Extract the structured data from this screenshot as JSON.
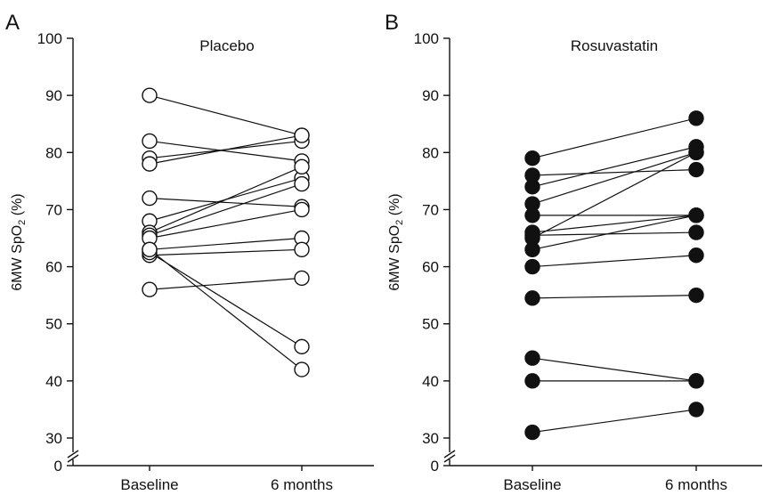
{
  "chart_data": [
    {
      "type": "scatter",
      "panel_letter": "A",
      "title": "Placebo",
      "ylabel_main": "6MW SpO",
      "ylabel_sub": "2",
      "ylabel_unit": " (%)",
      "categories": [
        "Baseline",
        "6 months"
      ],
      "y_ticks": [
        30,
        40,
        50,
        60,
        70,
        80,
        90,
        100
      ],
      "y_zero_label": "0",
      "ylim": [
        30,
        100
      ],
      "axis_break": true,
      "marker": "open",
      "pairs": [
        [
          90,
          83
        ],
        [
          82,
          78.5
        ],
        [
          79,
          82
        ],
        [
          78,
          83
        ],
        [
          72,
          70.5
        ],
        [
          68,
          75.5
        ],
        [
          66,
          77.5
        ],
        [
          65.5,
          74.5
        ],
        [
          65,
          70
        ],
        [
          63,
          65
        ],
        [
          62,
          63
        ],
        [
          62.5,
          46
        ],
        [
          63,
          42
        ],
        [
          56,
          58
        ]
      ]
    },
    {
      "type": "scatter",
      "panel_letter": "B",
      "title": "Rosuvastatin",
      "ylabel_main": "6MW SpO",
      "ylabel_sub": "2",
      "ylabel_unit": " (%)",
      "categories": [
        "Baseline",
        "6 months"
      ],
      "y_ticks": [
        30,
        40,
        50,
        60,
        70,
        80,
        90,
        100
      ],
      "y_zero_label": "0",
      "ylim": [
        30,
        100
      ],
      "axis_break": true,
      "marker": "filled",
      "pairs": [
        [
          79,
          86
        ],
        [
          76,
          77
        ],
        [
          74,
          81
        ],
        [
          71,
          80
        ],
        [
          69,
          69
        ],
        [
          66,
          69
        ],
        [
          65,
          80
        ],
        [
          65.5,
          66
        ],
        [
          63,
          69
        ],
        [
          60,
          62
        ],
        [
          54.5,
          55
        ],
        [
          44,
          40
        ],
        [
          40,
          40
        ],
        [
          31,
          35
        ]
      ]
    }
  ]
}
